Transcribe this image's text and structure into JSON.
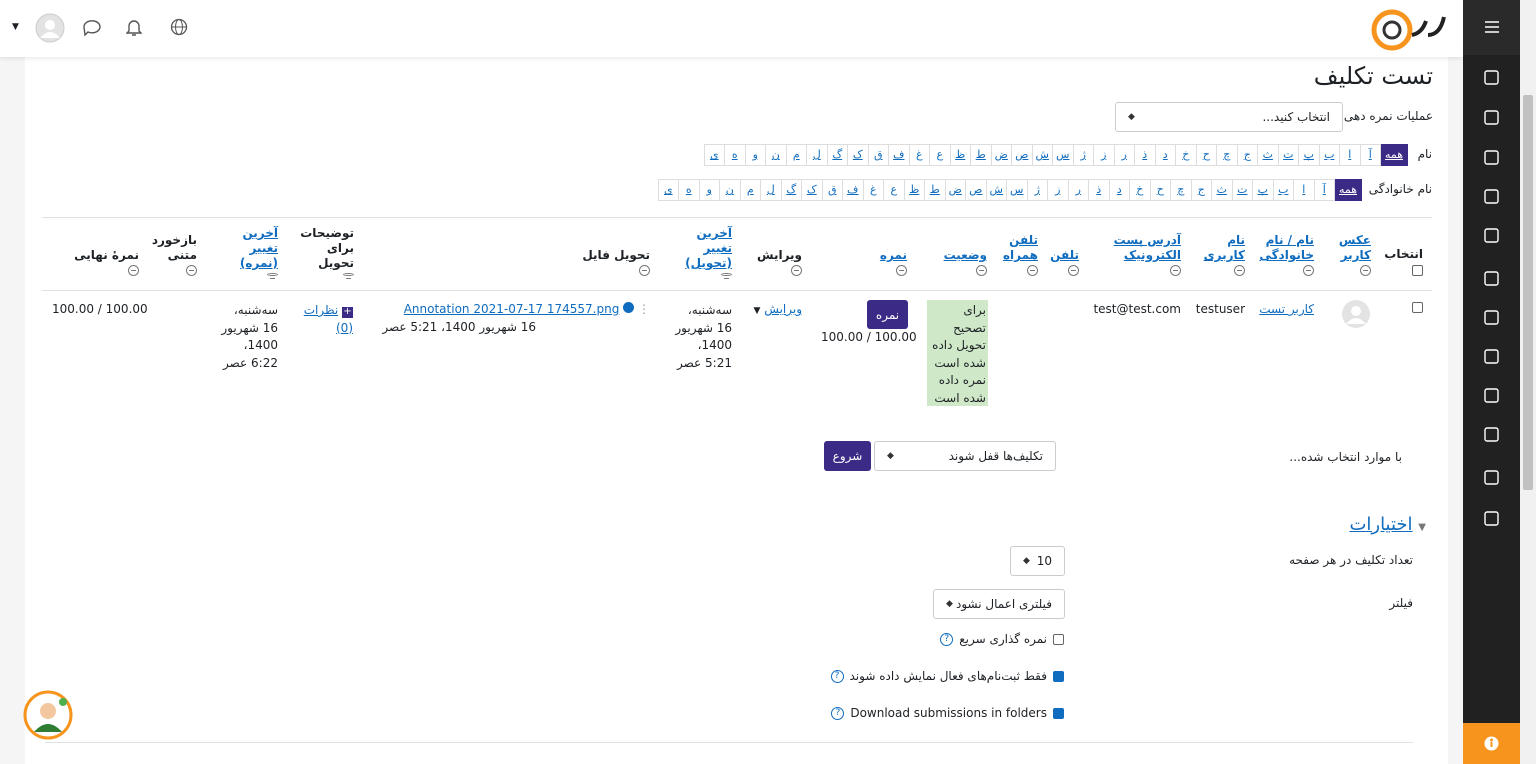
{
  "header": {
    "title": "تست تکلیف"
  },
  "grading_action": {
    "label": "عملیات نمره دهی",
    "select": "انتخاب کنید..."
  },
  "first_name_filter": {
    "label": "نام",
    "letters": [
      "همه",
      "آ",
      "ا",
      "ب",
      "پ",
      "ت",
      "ث",
      "ج",
      "چ",
      "ح",
      "خ",
      "د",
      "ذ",
      "ر",
      "ز",
      "ژ",
      "س",
      "ش",
      "ص",
      "ض",
      "ط",
      "ظ",
      "ع",
      "غ",
      "ف",
      "ق",
      "ک",
      "گ",
      "ل",
      "م",
      "ن",
      "و",
      "ه",
      "ی"
    ]
  },
  "last_name_filter": {
    "label": "نام خانوادگی",
    "letters": [
      "همه",
      "آ",
      "ا",
      "ب",
      "پ",
      "ت",
      "ث",
      "ج",
      "چ",
      "ح",
      "خ",
      "د",
      "ذ",
      "ر",
      "ز",
      "ژ",
      "س",
      "ش",
      "ص",
      "ض",
      "ط",
      "ظ",
      "ع",
      "غ",
      "ف",
      "ق",
      "ک",
      "گ",
      "ل",
      "م",
      "ن",
      "و",
      "ه",
      "ی"
    ]
  },
  "table": {
    "headers": [
      {
        "text": "انتخاب",
        "link": false
      },
      {
        "text": "عکس کاربر",
        "link": true
      },
      {
        "text": "نام / نام خانوادگی",
        "link": true
      },
      {
        "text": "نام کاربری",
        "link": true
      },
      {
        "text": "آدرس پست الکترونیک",
        "link": true
      },
      {
        "text": "تلفن",
        "link": true
      },
      {
        "text": "تلفن همراه",
        "link": true
      },
      {
        "text": "وضعیت",
        "link": true
      },
      {
        "text": "نمره",
        "link": true
      },
      {
        "text": "ویرایش",
        "link": false
      },
      {
        "text": "آخرین تغییر (تحویل)",
        "link": true
      },
      {
        "text": "تحویل فایل",
        "link": false
      },
      {
        "text": "توضیحات برای تحویل",
        "link": false
      },
      {
        "text": "آخرین تغییر (نمره)",
        "link": true
      },
      {
        "text": "بازخورد متنی",
        "link": false
      },
      {
        "text": "نمرهٔ نهایی",
        "link": false
      }
    ],
    "row": {
      "name": "کاربر تست",
      "username": "testuser",
      "email": "test@test.com",
      "status": [
        "برای تصحیح تحویل داده شده است",
        "نمره داده شده است"
      ],
      "grade_button": "نمره",
      "grade": "100.00 / 100.00",
      "edit": "ویرایش",
      "submission_modified": "سه‌شنبه، 16 شهریور 1400، 5:21 عصر",
      "file": "Annotation 2021-07-17 174557.png",
      "file_date": "16 شهریور 1400، 5:21 عصر",
      "comments": "نظرات (0)",
      "grade_modified": "سه‌شنبه، 16 شهریور 1400، 6:22 عصر",
      "final_grade": "100.00 / 100.00"
    }
  },
  "bulk": {
    "label": "با موارد انتخاب شده...",
    "select": "تکلیف‌ها قفل شوند",
    "button": "شروع"
  },
  "options": {
    "heading": "اختیارات",
    "per_page_label": "تعداد تکلیف در هر صفحه",
    "per_page": 10,
    "filter_label": "فیلتر",
    "filter": "فیلتری اعمال نشود",
    "checks": [
      {
        "label": "نمره گذاری سریع",
        "checked": false
      },
      {
        "label": "فقط ثبت‌نام‌های فعال نمایش داده شوند",
        "checked": true
      },
      {
        "label": "Download submissions in folders",
        "checked": true
      }
    ]
  }
}
